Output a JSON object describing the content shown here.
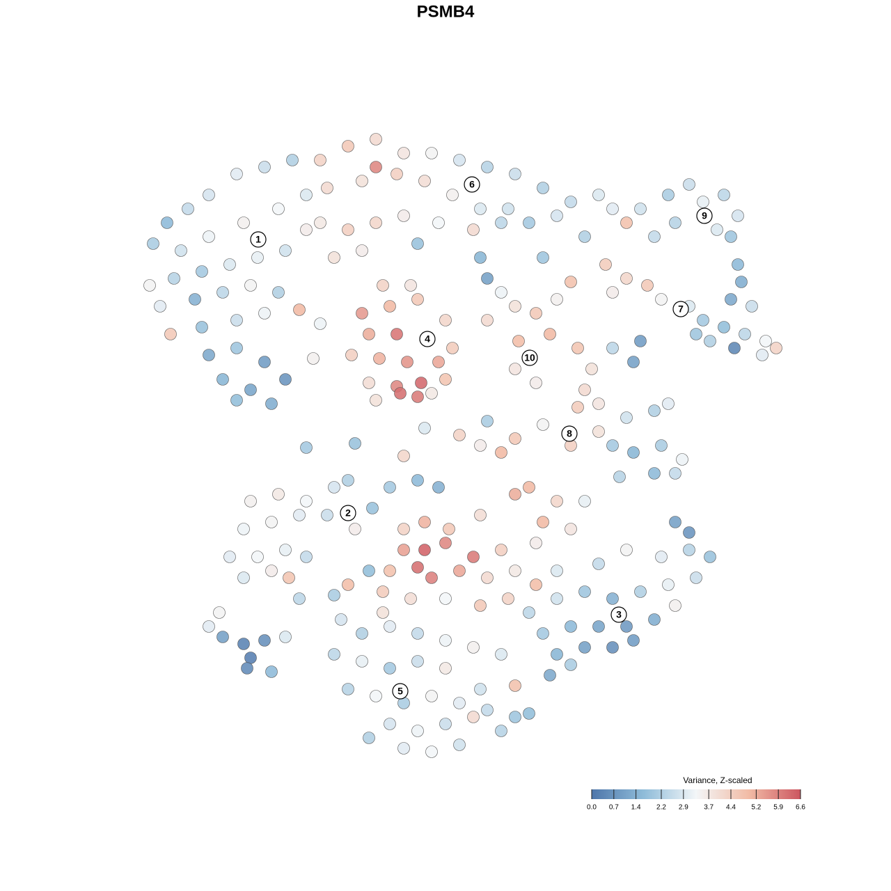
{
  "chart_data": {
    "type": "scatter",
    "title": "PSMB4",
    "xlim": [
      0,
      930
    ],
    "ylim": [
      0,
      930
    ],
    "x": [
      20,
      40,
      70,
      100,
      140,
      180,
      220,
      60,
      100,
      150,
      200,
      240,
      15,
      50,
      90,
      130,
      170,
      210,
      240,
      30,
      80,
      120,
      160,
      200,
      230,
      45,
      90,
      140,
      180,
      100,
      140,
      180,
      120,
      160,
      210,
      140,
      190,
      250,
      260,
      260,
      300,
      340,
      380,
      420,
      460,
      500,
      540,
      580,
      620,
      270,
      320,
      340,
      370,
      410,
      450,
      490,
      530,
      560,
      600,
      260,
      300,
      340,
      380,
      430,
      480,
      520,
      280,
      320,
      400,
      490,
      500,
      640,
      580,
      660,
      320,
      360,
      400,
      440,
      330,
      370,
      415,
      450,
      305,
      345,
      385,
      430,
      330,
      370,
      405,
      440,
      375,
      400,
      340,
      420,
      350,
      390,
      500,
      540,
      570,
      590,
      545,
      560,
      540,
      570,
      600,
      520,
      620,
      680,
      700,
      720,
      760,
      790,
      810,
      840,
      860,
      850,
      860,
      865,
      770,
      740,
      830,
      670,
      700,
      730,
      680,
      750,
      790,
      810,
      840,
      870,
      900,
      915,
      880,
      850,
      820,
      855,
      800,
      895,
      630,
      650,
      640,
      660,
      630,
      680,
      710,
      720,
      700,
      740,
      760,
      580,
      620,
      540,
      520,
      490,
      460,
      680,
      710,
      750,
      780,
      690,
      740,
      770,
      660,
      380,
      310,
      240,
      410,
      500,
      160,
      200,
      240,
      280,
      300,
      150,
      190,
      230,
      270,
      310,
      130,
      170,
      210,
      240,
      150,
      190,
      215,
      230,
      300,
      280,
      335,
      360,
      400,
      430,
      380,
      410,
      445,
      490,
      540,
      560,
      600,
      640,
      380,
      410,
      440,
      480,
      520,
      570,
      360,
      400,
      420,
      460,
      500,
      540,
      350,
      390,
      440,
      490,
      530,
      570,
      580,
      620,
      330,
      350,
      560,
      600,
      640,
      680,
      720,
      760,
      800,
      820,
      790,
      750,
      700,
      660,
      600,
      580,
      620,
      660,
      700,
      740,
      600,
      640,
      680,
      710,
      590,
      620,
      770,
      790,
      770,
      290,
      320,
      360,
      400,
      440,
      480,
      520,
      280,
      320,
      360,
      400,
      440,
      490,
      300,
      340,
      380,
      420,
      460,
      500,
      540,
      360,
      400,
      440,
      480,
      520,
      380,
      420,
      460,
      560,
      330,
      540,
      100,
      120,
      150,
      180,
      160,
      155,
      210,
      190,
      115
    ],
    "y": [
      750,
      780,
      800,
      820,
      850,
      860,
      870,
      740,
      760,
      780,
      800,
      820,
      690,
      700,
      710,
      720,
      730,
      740,
      770,
      660,
      670,
      680,
      690,
      680,
      655,
      620,
      630,
      640,
      650,
      590,
      600,
      580,
      555,
      540,
      555,
      525,
      520,
      585,
      635,
      870,
      890,
      900,
      880,
      880,
      870,
      860,
      850,
      830,
      810,
      830,
      840,
      860,
      850,
      840,
      820,
      800,
      800,
      780,
      790,
      780,
      770,
      780,
      790,
      780,
      770,
      780,
      730,
      740,
      750,
      730,
      700,
      760,
      730,
      820,
      650,
      660,
      670,
      640,
      620,
      620,
      613,
      600,
      590,
      585,
      580,
      580,
      550,
      545,
      550,
      555,
      535,
      530,
      525,
      535,
      690,
      690,
      640,
      660,
      650,
      620,
      610,
      585,
      570,
      550,
      670,
      680,
      695,
      800,
      780,
      800,
      820,
      835,
      810,
      820,
      790,
      760,
      720,
      695,
      780,
      760,
      770,
      720,
      700,
      690,
      680,
      670,
      660,
      640,
      630,
      620,
      610,
      600,
      660,
      670,
      610,
      600,
      620,
      590,
      600,
      570,
      540,
      520,
      515,
      600,
      580,
      610,
      500,
      510,
      520,
      490,
      460,
      470,
      450,
      460,
      475,
      460,
      450,
      460,
      440,
      415,
      420,
      420,
      480,
      445,
      463,
      457,
      485,
      495,
      380,
      390,
      380,
      400,
      410,
      340,
      350,
      360,
      360,
      340,
      300,
      300,
      310,
      300,
      270,
      280,
      270,
      240,
      260,
      245,
      370,
      400,
      410,
      400,
      340,
      350,
      340,
      360,
      390,
      400,
      380,
      380,
      310,
      310,
      320,
      300,
      310,
      320,
      280,
      285,
      270,
      280,
      270,
      280,
      250,
      240,
      240,
      230,
      240,
      260,
      350,
      340,
      280,
      220,
      220,
      240,
      250,
      240,
      250,
      260,
      270,
      300,
      310,
      300,
      310,
      290,
      280,
      190,
      200,
      200,
      200,
      210,
      160,
      170,
      170,
      180,
      130,
      145,
      350,
      335,
      230,
      210,
      190,
      200,
      190,
      180,
      170,
      160,
      160,
      150,
      140,
      150,
      140,
      110,
      110,
      100,
      90,
      100,
      90,
      80,
      70,
      60,
      50,
      60,
      70,
      50,
      25,
      20,
      30,
      75,
      40,
      115,
      200,
      185,
      175,
      180,
      155,
      140,
      185,
      135,
      220
    ],
    "values": [
      2.1,
      1.6,
      2.5,
      2.8,
      3.0,
      2.6,
      2.2,
      2.7,
      3.2,
      3.5,
      3.3,
      2.9,
      3.4,
      2.3,
      2.0,
      2.9,
      3.1,
      2.7,
      3.6,
      3.0,
      1.4,
      2.4,
      3.4,
      2.2,
      5.0,
      4.6,
      1.8,
      2.6,
      3.2,
      1.2,
      1.9,
      0.9,
      1.5,
      1.1,
      0.7,
      1.7,
      1.3,
      3.5,
      3.2,
      4.3,
      4.6,
      4.1,
      3.8,
      3.4,
      2.8,
      2.3,
      2.6,
      2.2,
      2.5,
      4.1,
      3.9,
      5.8,
      4.4,
      4.0,
      3.5,
      2.9,
      2.7,
      2.0,
      2.8,
      3.7,
      4.4,
      4.2,
      3.6,
      3.3,
      4.1,
      2.4,
      3.9,
      3.6,
      1.8,
      1.5,
      1.0,
      2.2,
      1.9,
      2.9,
      5.5,
      5.0,
      4.6,
      4.2,
      5.2,
      6.1,
      4.9,
      4.5,
      4.4,
      5.1,
      5.6,
      5.3,
      4.0,
      5.8,
      6.3,
      4.7,
      6.2,
      6.0,
      3.9,
      3.7,
      4.3,
      3.8,
      4.1,
      3.9,
      4.6,
      5.0,
      4.9,
      4.2,
      3.8,
      3.6,
      3.5,
      3.2,
      4.8,
      3.0,
      4.8,
      2.7,
      2.1,
      2.6,
      3.1,
      2.4,
      2.8,
      1.9,
      1.6,
      1.3,
      2.3,
      2.5,
      2.9,
      4.5,
      4.2,
      4.6,
      3.6,
      3.4,
      2.9,
      2.0,
      1.7,
      2.4,
      3.3,
      4.3,
      2.6,
      1.2,
      2.2,
      0.4,
      1.9,
      3.0,
      4.7,
      3.9,
      4.1,
      3.8,
      4.5,
      2.4,
      1.0,
      0.9,
      2.7,
      2.2,
      3.0,
      3.4,
      4.4,
      4.6,
      5.0,
      3.6,
      4.3,
      2.0,
      1.5,
      2.1,
      3.2,
      2.3,
      1.6,
      2.5,
      3.9,
      4.2,
      1.8,
      2.0,
      2.9,
      2.1,
      3.5,
      3.7,
      3.3,
      2.8,
      2.2,
      3.2,
      3.4,
      3.0,
      2.6,
      3.6,
      3.0,
      3.3,
      3.1,
      2.5,
      2.9,
      3.6,
      4.7,
      2.4,
      4.9,
      2.1,
      1.8,
      2.0,
      1.6,
      1.4,
      4.3,
      5.1,
      4.6,
      4.0,
      5.2,
      5.0,
      4.2,
      3.1,
      5.4,
      6.4,
      5.8,
      6.0,
      4.4,
      3.6,
      4.8,
      6.2,
      5.9,
      5.3,
      4.1,
      3.7,
      4.5,
      4.0,
      3.3,
      4.6,
      4.3,
      4.9,
      5.0,
      3.8,
      1.7,
      3.9,
      2.4,
      2.7,
      1.9,
      1.4,
      2.2,
      3.1,
      2.6,
      1.8,
      2.3,
      3.0,
      3.4,
      2.5,
      2.9,
      2.0,
      1.6,
      1.1,
      0.8,
      1.3,
      1.5,
      1.0,
      0.6,
      0.9,
      1.2,
      2.1,
      1.0,
      0.7,
      3.5,
      2.8,
      2.2,
      3.0,
      2.5,
      3.2,
      3.5,
      2.9,
      2.4,
      3.1,
      2.0,
      2.6,
      3.7,
      2.7,
      2.3,
      3.3,
      2.1,
      3.4,
      3.0,
      2.5,
      1.9,
      2.8,
      3.2,
      2.6,
      4.1,
      2.3,
      3.0,
      3.3,
      2.7,
      1.7,
      2.2,
      4.8,
      3.0,
      1.0,
      0.3,
      0.6,
      0.2,
      0.5,
      2.9,
      1.6,
      3.4
    ],
    "clusters": {
      "labels": [
        "1",
        "2",
        "3",
        "4",
        "5",
        "6",
        "7",
        "8",
        "9",
        "10"
      ],
      "x": [
        171,
        300,
        689,
        414,
        375,
        478,
        778,
        618,
        812,
        561
      ],
      "y": [
        756,
        363,
        217,
        613,
        107,
        835,
        656,
        477,
        790,
        586
      ]
    },
    "colorbar": {
      "title": "Variance, Z-scaled",
      "lim": [
        0,
        6.6
      ],
      "ticks": [
        {
          "value": 0,
          "label": "0.0"
        },
        0.7,
        1.4,
        2.2,
        2.9,
        3.7,
        4.4,
        5.2,
        5.9,
        6.6
      ],
      "colors": [
        "#4e76aa",
        "#8fbcd9",
        "#f3f6f8",
        "#f2bca6",
        "#cc5660"
      ]
    }
  }
}
